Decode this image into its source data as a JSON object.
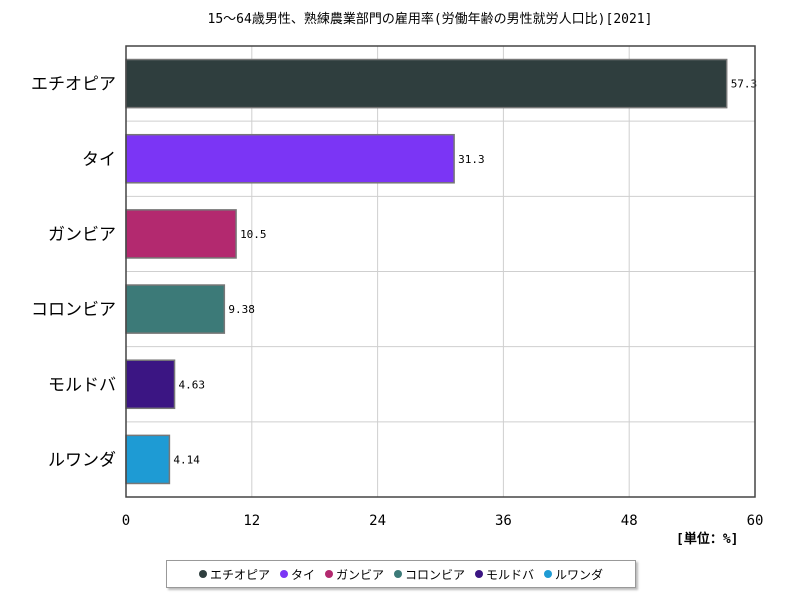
{
  "chart_data": {
    "type": "bar",
    "orientation": "horizontal",
    "title": "15～64歳男性、熟練農業部門の雇用率(労働年齢の男性就労人口比)[2021]",
    "unit_label": "[単位：%]",
    "categories": [
      "エチオピア",
      "タイ",
      "ガンビア",
      "コロンビア",
      "モルドバ",
      "ルワンダ"
    ],
    "values": [
      57.3,
      31.3,
      10.5,
      9.38,
      4.63,
      4.14
    ],
    "value_labels": [
      "57.3",
      "31.3",
      "10.5",
      "9.38",
      "4.63",
      "4.14"
    ],
    "colors": [
      "#2f3e3e",
      "#7b35f5",
      "#b3296f",
      "#3c7a78",
      "#3b1583",
      "#1e9bd4"
    ],
    "xlim": [
      0,
      60
    ],
    "xticks": [
      "0",
      "12",
      "24",
      "36",
      "48",
      "60"
    ],
    "grid": true,
    "legend_position": "bottom"
  }
}
